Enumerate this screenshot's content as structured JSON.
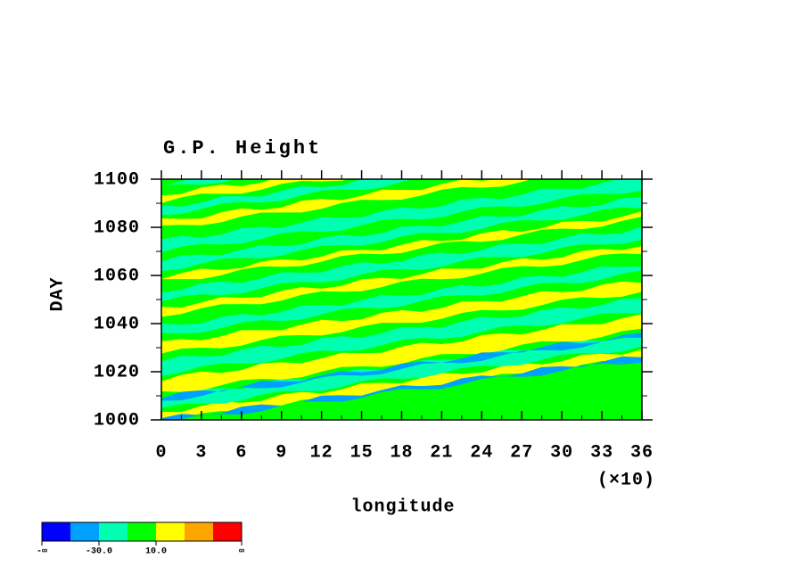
{
  "chart_data": {
    "type": "contour",
    "title": "G.P. Height",
    "xlabel": "longitude",
    "ylabel": "DAY",
    "xscale_label": "(×10)",
    "xlim": [
      0,
      36
    ],
    "xticks": [
      0,
      3,
      6,
      9,
      12,
      15,
      18,
      21,
      24,
      27,
      30,
      33,
      36
    ],
    "ylim": [
      1000,
      1100
    ],
    "yticks": [
      1000,
      1020,
      1040,
      1060,
      1080,
      1100
    ],
    "colorbar": {
      "colors": [
        "#0000ff",
        "#00a0ff",
        "#00ffb0",
        "#00ff00",
        "#ffff00",
        "#ffa500",
        "#ff0000"
      ],
      "labels": [
        "-∞",
        "-30.0",
        "10.0",
        "∞"
      ]
    }
  }
}
